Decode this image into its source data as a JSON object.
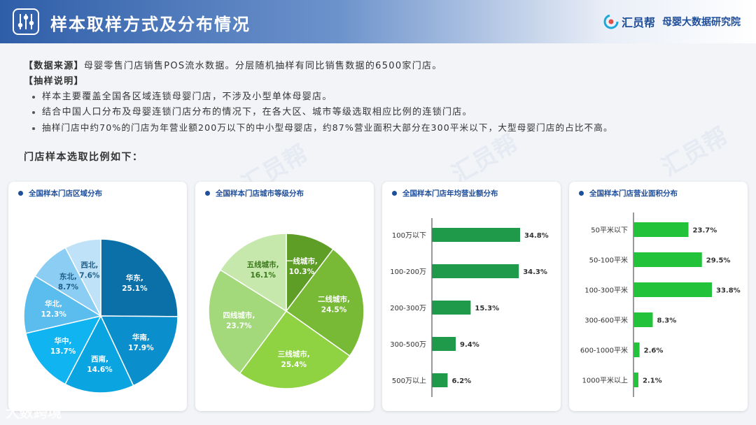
{
  "header": {
    "title": "样本取样方式及分布情况",
    "brand_name": "汇员帮",
    "brand_sub": "母婴大数据研究院"
  },
  "intro": {
    "source_tag": "【数据来源】",
    "source_text": "母婴零售门店销售POS流水数据。分层随机抽样有同比销售数据的6500家门店。",
    "method_tag": "【抽样说明】",
    "bullets": [
      "样本主要覆盖全国各区域连锁母婴门店，不涉及小型单体母婴店。",
      "结合中国人口分布及母婴连锁门店分布的情况下，在各大区、城市等级选取相应比例的连锁门店。",
      "抽样门店中约70%的门店为年营业额200万以下的中小型母婴店，约87%营业面积大部分在300平米以下，大型母婴门店的占比不高。"
    ],
    "subhead": "门店样本选取比例如下："
  },
  "watermark": "大数跨境",
  "colors": {
    "region": [
      "#0b6fa8",
      "#0b8fcc",
      "#0aa5e0",
      "#0fb4f0",
      "#5bbcee",
      "#8ccdf3",
      "#bfe2f8"
    ],
    "city": [
      "#5e9e26",
      "#78b936",
      "#8fd343",
      "#a3d97a",
      "#c7e8ad"
    ],
    "revenue_bar": "#1e9a4a",
    "area_bar": "#22c33a"
  },
  "chart_data": [
    {
      "type": "pie",
      "title": "全国样本门店区域分布",
      "categories": [
        "华东,",
        "华南,",
        "西南,",
        "华中,",
        "华北,",
        "东北,",
        "西北,"
      ],
      "values": [
        25.1,
        17.9,
        14.6,
        13.7,
        12.3,
        8.7,
        7.6
      ],
      "value_labels": [
        "25.1%",
        "17.9%",
        "14.6%",
        "13.7%",
        "12.3%",
        "8.7%",
        "7.6%"
      ]
    },
    {
      "type": "pie",
      "title": "全国样本门店城市等级分布",
      "categories": [
        "一线城市,",
        "二线城市,",
        "三线城市,",
        "四线城市,",
        "五线城市,"
      ],
      "values": [
        10.3,
        24.5,
        25.4,
        23.7,
        16.1
      ],
      "value_labels": [
        "10.3%",
        "24.5%",
        "25.4%",
        "23.7%",
        "16.1%"
      ]
    },
    {
      "type": "bar",
      "title": "全国样本门店年均营业额分布",
      "categories": [
        "100万以下",
        "100-200万",
        "200-300万",
        "300-500万",
        "500万以上"
      ],
      "values": [
        34.8,
        34.3,
        15.3,
        9.4,
        6.2
      ],
      "value_labels": [
        "34.8%",
        "34.3%",
        "15.3%",
        "9.4%",
        "6.2%"
      ]
    },
    {
      "type": "bar",
      "title": "全国样本门店营业面积分布",
      "categories": [
        "50平米以下",
        "50-100平米",
        "100-300平米",
        "300-600平米",
        "600-1000平米",
        "1000平米以上"
      ],
      "values": [
        23.7,
        29.5,
        33.8,
        8.3,
        2.6,
        2.1
      ],
      "value_labels": [
        "23.7%",
        "29.5%",
        "33.8%",
        "8.3%",
        "2.6%",
        "2.1%"
      ]
    }
  ]
}
